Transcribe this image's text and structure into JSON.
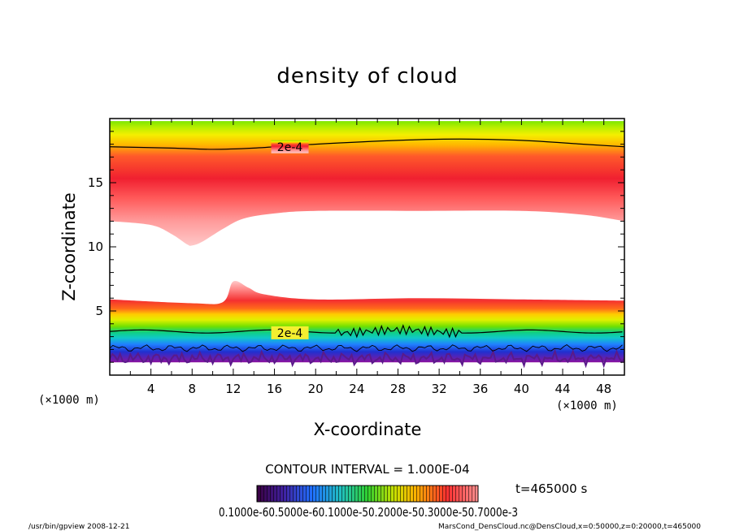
{
  "chart_data": {
    "type": "contour",
    "title": "density of cloud",
    "xlabel": "X-coordinate",
    "ylabel": "Z-coordinate",
    "x_unit": "(×1000 m)",
    "z_unit": "(×1000 m)",
    "xlim": [
      0,
      50
    ],
    "ylim": [
      0,
      20
    ],
    "x_ticks": [
      "4",
      "8",
      "12",
      "16",
      "20",
      "24",
      "28",
      "32",
      "36",
      "40",
      "44",
      "48"
    ],
    "y_ticks": [
      "5",
      "10",
      "15"
    ],
    "contour_interval_text": "CONTOUR INTERVAL = 1.000E-04",
    "time_text": "t=465000 s",
    "colorbar_text": "0.1000e-60.5000e-60.1000e-50.2000e-50.3000e-50.7000e-3",
    "contour_labels": [
      {
        "text": "2e-4",
        "x": 17.5,
        "z": 17.8
      },
      {
        "text": "2e-4",
        "x": 17.5,
        "z": 3.3
      }
    ],
    "upper_cloud": {
      "top_z": 19.8,
      "base_profile": [
        [
          0,
          12.0
        ],
        [
          4,
          11.7
        ],
        [
          6,
          11.0
        ],
        [
          7.5,
          10.2
        ],
        [
          8,
          10.1
        ],
        [
          9,
          10.4
        ],
        [
          11,
          11.4
        ],
        [
          13,
          12.2
        ],
        [
          16,
          12.6
        ],
        [
          20,
          12.8
        ],
        [
          30,
          12.8
        ],
        [
          40,
          12.8
        ],
        [
          46,
          12.5
        ],
        [
          50,
          12.0
        ]
      ]
    },
    "lower_cloud": {
      "bottom_z": 1.0,
      "top_profile": [
        [
          0,
          5.9
        ],
        [
          8,
          5.6
        ],
        [
          11,
          5.7
        ],
        [
          12,
          7.3
        ],
        [
          13.5,
          6.8
        ],
        [
          15,
          6.3
        ],
        [
          20,
          5.9
        ],
        [
          30,
          6.0
        ],
        [
          40,
          5.9
        ],
        [
          50,
          5.8
        ]
      ]
    }
  },
  "footer": {
    "left": "/usr/bin/gpview   2008-12-21",
    "right": "MarsCond_DensCloud.nc@DensCloud,x=0:50000,z=0:20000,t=465000"
  }
}
